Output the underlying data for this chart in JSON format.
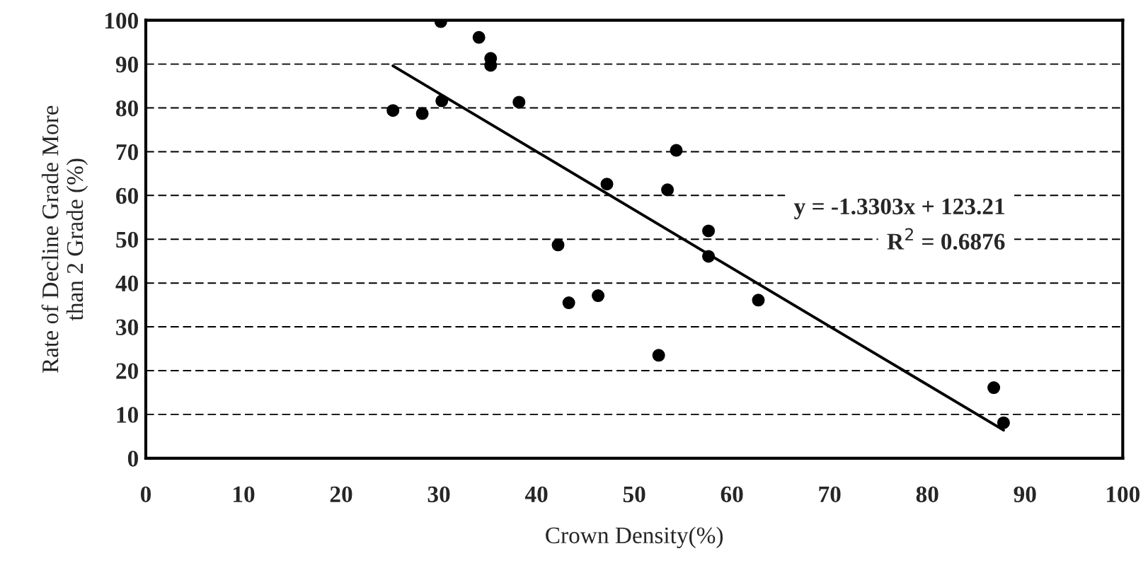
{
  "chart_data": {
    "type": "scatter",
    "xlabel": "Crown Density(%)",
    "ylabel": "Rate of Decline Grade More\nthan 2 Grade (%)",
    "xlim": [
      0,
      100
    ],
    "xticks": [
      0,
      10,
      20,
      30,
      40,
      50,
      60,
      70,
      80,
      90,
      100
    ],
    "ylim": [
      0,
      100
    ],
    "yticks": [
      0,
      10,
      20,
      30,
      40,
      50,
      60,
      70,
      80,
      90,
      100
    ],
    "grid": "y",
    "legend": false,
    "series": [
      {
        "marker": "circle",
        "color": "#000000",
        "x": [
          25.3,
          28.3,
          30.2,
          30.3,
          34.1,
          35.3,
          35.3,
          38.2,
          47.2,
          42.2,
          43.3,
          46.3,
          54.3,
          53.4,
          57.6,
          57.6,
          62.7,
          52.5,
          86.8,
          87.8
        ],
        "values": [
          79.4,
          78.7,
          99.7,
          81.6,
          96.1,
          91.3,
          89.7,
          81.3,
          62.6,
          48.7,
          35.5,
          37.1,
          70.3,
          61.3,
          51.9,
          46.1,
          36.1,
          23.5,
          16.1,
          8.1
        ]
      },
      {
        "type": "line",
        "marker": "none",
        "color": "#000000",
        "x": [
          25.3,
          87.8
        ],
        "values": [
          89.6,
          6.4
        ]
      }
    ],
    "annotations": [
      "y = -1.3303x + 123.21",
      "R$^{2}$ = 0.6876"
    ]
  }
}
